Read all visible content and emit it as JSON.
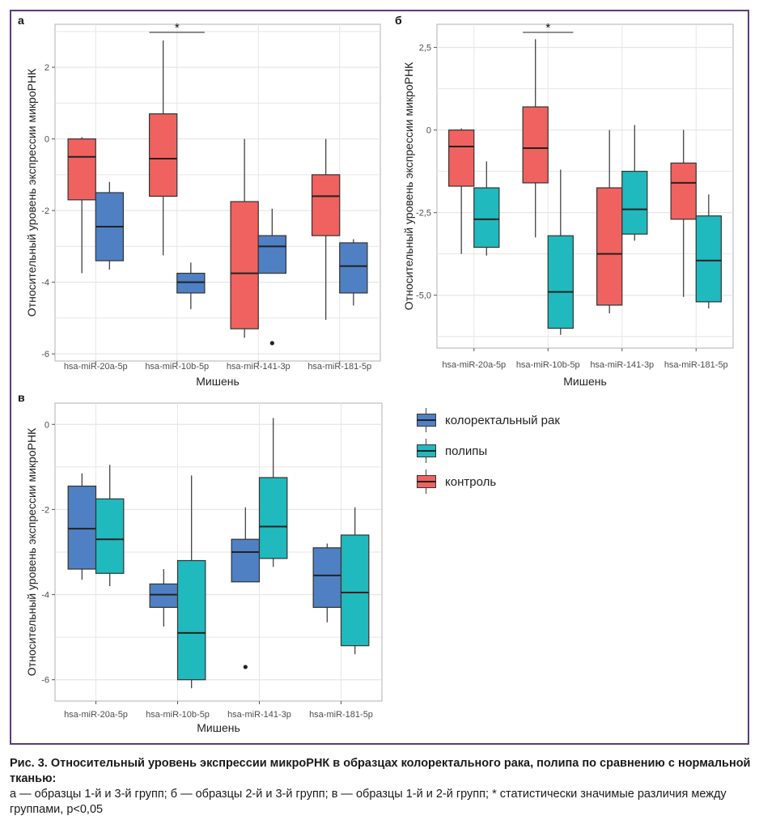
{
  "colors": {
    "cancer": "#4f80c3",
    "polyps": "#20b9bd",
    "control": "#f0625f"
  },
  "legend": [
    {
      "label": "колоректальный рак",
      "color": "#4f80c3"
    },
    {
      "label": "полипы",
      "color": "#20b9bd"
    },
    {
      "label": "контроль",
      "color": "#f0625f"
    }
  ],
  "caption": {
    "title": "Рис. 3. Относительный уровень экспрессии микроРНК в образцах колоректального рака, полипа по сравнению с нормальной тканью:",
    "text": "а — образцы 1-й и 3-й групп; б — образцы 2-й и 3-й групп; в — образцы 1-й и 2-й групп; * статистически значимые различия между группами, p<0,05"
  },
  "chart_data": [
    {
      "type": "box",
      "panel_label": "а",
      "xlabel": "Мишень",
      "ylabel": "Относительный уровень экспрессии микроРНК",
      "categories": [
        "hsa-miR-20a-5p",
        "hsa-miR-10b-5p",
        "hsa-miR-141-3p",
        "hsa-miR-181-5p"
      ],
      "ylim": [
        -6.2,
        3.2
      ],
      "yticks": [
        2,
        0,
        -2,
        -4,
        -6
      ],
      "ytick_labels": [
        "2",
        "0",
        "-2",
        "-4",
        "-6"
      ],
      "grid": true,
      "significance": [
        {
          "category": "hsa-miR-10b-5p",
          "label": "*"
        }
      ],
      "series": [
        {
          "name": "контроль",
          "color": "#f0625f",
          "boxes": [
            {
              "min": -3.75,
              "q1": -1.7,
              "median": -0.5,
              "q3": 0.0,
              "max": 0.05
            },
            {
              "min": -3.25,
              "q1": -1.6,
              "median": -0.55,
              "q3": 0.7,
              "max": 2.75
            },
            {
              "min": -5.55,
              "q1": -5.3,
              "median": -3.75,
              "q3": -1.75,
              "max": 0.0
            },
            {
              "min": -5.05,
              "q1": -2.7,
              "median": -1.6,
              "q3": -1.0,
              "max": 0.0
            }
          ]
        },
        {
          "name": "колоректальный рак",
          "color": "#4f80c3",
          "boxes": [
            {
              "min": -3.65,
              "q1": -3.4,
              "median": -2.45,
              "q3": -1.5,
              "max": -1.2
            },
            {
              "min": -4.75,
              "q1": -4.3,
              "median": -4.0,
              "q3": -3.75,
              "max": -3.45
            },
            {
              "min": -3.75,
              "q1": -3.75,
              "median": -3.0,
              "q3": -2.7,
              "max": -1.95,
              "outliers": [
                -5.7
              ]
            },
            {
              "min": -4.65,
              "q1": -4.3,
              "median": -3.55,
              "q3": -2.9,
              "max": -2.8
            }
          ]
        }
      ]
    },
    {
      "type": "box",
      "panel_label": "б",
      "xlabel": "Мишень",
      "ylabel": "Относительный уровень экспрессии микроРНК",
      "categories": [
        "hsa-miR-20a-5p",
        "hsa-miR-10b-5p",
        "hsa-miR-141-3p",
        "hsa-miR-181-5p"
      ],
      "ylim": [
        -6.6,
        3.2
      ],
      "yticks": [
        2.5,
        0,
        -2.5,
        -5
      ],
      "ytick_labels": [
        "2,5",
        "0",
        "-2,5",
        "-5,0"
      ],
      "grid": true,
      "significance": [
        {
          "category": "hsa-miR-10b-5p",
          "label": "*"
        }
      ],
      "series": [
        {
          "name": "контроль",
          "color": "#f0625f",
          "boxes": [
            {
              "min": -3.75,
              "q1": -1.7,
              "median": -0.5,
              "q3": 0.0,
              "max": 0.05
            },
            {
              "min": -3.25,
              "q1": -1.6,
              "median": -0.55,
              "q3": 0.7,
              "max": 2.75
            },
            {
              "min": -5.55,
              "q1": -5.3,
              "median": -3.75,
              "q3": -1.75,
              "max": 0.0
            },
            {
              "min": -5.05,
              "q1": -2.7,
              "median": -1.6,
              "q3": -1.0,
              "max": 0.0
            }
          ]
        },
        {
          "name": "полипы",
          "color": "#20b9bd",
          "boxes": [
            {
              "min": -3.8,
              "q1": -3.55,
              "median": -2.7,
              "q3": -1.75,
              "max": -0.95
            },
            {
              "min": -6.2,
              "q1": -6.0,
              "median": -4.9,
              "q3": -3.2,
              "max": -1.2
            },
            {
              "min": -3.35,
              "q1": -3.15,
              "median": -2.4,
              "q3": -1.25,
              "max": 0.15
            },
            {
              "min": -5.4,
              "q1": -5.2,
              "median": -3.95,
              "q3": -2.6,
              "max": -1.95
            }
          ]
        }
      ]
    },
    {
      "type": "box",
      "panel_label": "в",
      "xlabel": "Мишень",
      "ylabel": "Относительный уровень экспрессии микроРНК",
      "categories": [
        "hsa-miR-20a-5p",
        "hsa-miR-10b-5p",
        "hsa-miR-141-3p",
        "hsa-miR-181-5p"
      ],
      "ylim": [
        -6.5,
        0.5
      ],
      "yticks": [
        0,
        -2,
        -4,
        -6
      ],
      "ytick_labels": [
        "0",
        "-2",
        "-4",
        "-6"
      ],
      "grid": true,
      "significance": [],
      "series": [
        {
          "name": "колоректальный рак",
          "color": "#4f80c3",
          "boxes": [
            {
              "min": -3.65,
              "q1": -3.4,
              "median": -2.45,
              "q3": -1.45,
              "max": -1.15
            },
            {
              "min": -4.75,
              "q1": -4.3,
              "median": -4.0,
              "q3": -3.75,
              "max": -3.4
            },
            {
              "min": -3.7,
              "q1": -3.7,
              "median": -3.0,
              "q3": -2.7,
              "max": -1.95,
              "outliers": [
                -5.7
              ]
            },
            {
              "min": -4.65,
              "q1": -4.3,
              "median": -3.55,
              "q3": -2.9,
              "max": -2.8
            }
          ]
        },
        {
          "name": "полипы",
          "color": "#20b9bd",
          "boxes": [
            {
              "min": -3.8,
              "q1": -3.5,
              "median": -2.7,
              "q3": -1.75,
              "max": -0.95
            },
            {
              "min": -6.2,
              "q1": -6.0,
              "median": -4.9,
              "q3": -3.2,
              "max": -1.2
            },
            {
              "min": -3.35,
              "q1": -3.15,
              "median": -2.4,
              "q3": -1.25,
              "max": 0.15
            },
            {
              "min": -5.4,
              "q1": -5.2,
              "median": -3.95,
              "q3": -2.6,
              "max": -1.95
            }
          ]
        }
      ]
    }
  ]
}
